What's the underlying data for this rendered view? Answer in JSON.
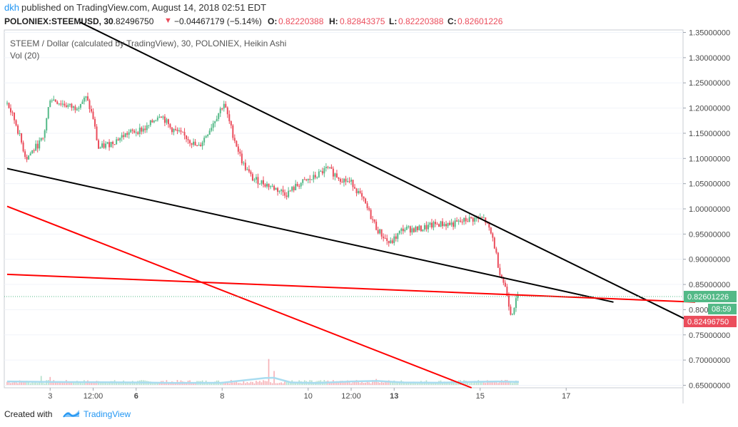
{
  "header": {
    "author": "dkh",
    "published_text": "published on TradingView.com, August 14, 2018 02:51 EDT"
  },
  "ohlc": {
    "symbol": "POLONIEX:STEEMUSD, 30",
    "last": "0.82496750",
    "change": "−0.04467179 (−5.14%)",
    "o_label": "O:",
    "o": "0.82220388",
    "h_label": "H:",
    "h": "0.82843375",
    "l_label": "L:",
    "l": "0.82220388",
    "c_label": "C:",
    "c": "0.82601226"
  },
  "legend": {
    "title": "STEEM / Dollar (calculated by TradingView), 30, POLONIEX, Heikin Ashi",
    "volume": "Vol (20)"
  },
  "colors": {
    "up": "#53b987",
    "down": "#eb4d5c",
    "trend_black": "#000000",
    "trend_red": "#ff0000",
    "vol_ma": "#a9dcf0",
    "price_tag_green": "#53b987",
    "price_tag_red": "#eb4d5c"
  },
  "chart_data": {
    "type": "candlestick",
    "style": "Heikin Ashi",
    "ylim": [
      0.645,
      1.355
    ],
    "y_ticks": [
      "1.35000000",
      "1.30000000",
      "1.25000000",
      "1.20000000",
      "1.15000000",
      "1.10000000",
      "1.05000000",
      "1.00000000",
      "0.95000000",
      "0.90000000",
      "0.85000000",
      "0.80000000",
      "0.75000000",
      "0.70000000",
      "0.65000000"
    ],
    "x_ticks": [
      {
        "label": "3",
        "bold": false,
        "t": 0.5
      },
      {
        "label": "12:00",
        "bold": false,
        "t": 1.0
      },
      {
        "label": "6",
        "bold": true,
        "t": 1.5
      },
      {
        "label": "8",
        "bold": false,
        "t": 2.5
      },
      {
        "label": "10",
        "bold": false,
        "t": 3.5
      },
      {
        "label": "12:00",
        "bold": false,
        "t": 4.0
      },
      {
        "label": "13",
        "bold": true,
        "t": 4.5
      },
      {
        "label": "15",
        "bold": false,
        "t": 5.5
      },
      {
        "label": "17",
        "bold": false,
        "t": 6.5
      }
    ],
    "price_path": [
      [
        0.0,
        1.21
      ],
      [
        0.1,
        1.17
      ],
      [
        0.22,
        1.1
      ],
      [
        0.32,
        1.12
      ],
      [
        0.42,
        1.14
      ],
      [
        0.5,
        1.22
      ],
      [
        0.62,
        1.21
      ],
      [
        0.78,
        1.2
      ],
      [
        0.92,
        1.22
      ],
      [
        1.0,
        1.18
      ],
      [
        1.06,
        1.12
      ],
      [
        1.2,
        1.13
      ],
      [
        1.4,
        1.15
      ],
      [
        1.62,
        1.16
      ],
      [
        1.78,
        1.19
      ],
      [
        1.9,
        1.16
      ],
      [
        2.1,
        1.14
      ],
      [
        2.22,
        1.12
      ],
      [
        2.36,
        1.16
      ],
      [
        2.52,
        1.21
      ],
      [
        2.62,
        1.15
      ],
      [
        2.74,
        1.09
      ],
      [
        2.85,
        1.06
      ],
      [
        3.0,
        1.05
      ],
      [
        3.12,
        1.04
      ],
      [
        3.25,
        1.03
      ],
      [
        3.4,
        1.05
      ],
      [
        3.55,
        1.06
      ],
      [
        3.72,
        1.08
      ],
      [
        3.88,
        1.06
      ],
      [
        4.02,
        1.05
      ],
      [
        4.16,
        1.01
      ],
      [
        4.3,
        0.96
      ],
      [
        4.45,
        0.93
      ],
      [
        4.6,
        0.96
      ],
      [
        4.8,
        0.96
      ],
      [
        5.0,
        0.97
      ],
      [
        5.2,
        0.97
      ],
      [
        5.38,
        0.98
      ],
      [
        5.55,
        0.98
      ],
      [
        5.65,
        0.94
      ],
      [
        5.72,
        0.88
      ],
      [
        5.8,
        0.84
      ],
      [
        5.86,
        0.79
      ],
      [
        5.9,
        0.81
      ],
      [
        5.94,
        0.826
      ]
    ],
    "volume_ma_path": [
      [
        0.0,
        0.35
      ],
      [
        0.5,
        0.3
      ],
      [
        1.0,
        0.28
      ],
      [
        1.5,
        0.25
      ],
      [
        2.0,
        0.2
      ],
      [
        2.5,
        0.22
      ],
      [
        3.0,
        0.7
      ],
      [
        3.1,
        0.72
      ],
      [
        3.3,
        0.25
      ],
      [
        3.6,
        0.2
      ],
      [
        4.0,
        0.35
      ],
      [
        4.3,
        0.4
      ],
      [
        4.6,
        0.25
      ],
      [
        5.0,
        0.22
      ],
      [
        5.4,
        0.3
      ],
      [
        5.7,
        0.35
      ],
      [
        5.95,
        0.3
      ]
    ],
    "volume_spikes": [
      {
        "t": 0.4,
        "v": 0.9
      },
      {
        "t": 0.5,
        "v": 0.8
      },
      {
        "t": 2.6,
        "v": 0.5
      },
      {
        "t": 3.05,
        "v": 2.6
      },
      {
        "t": 3.1,
        "v": 1.4
      },
      {
        "t": 4.3,
        "v": 0.6
      },
      {
        "t": 5.8,
        "v": 0.5
      }
    ],
    "trend_lines": [
      {
        "color": "black",
        "p1": [
          0.85,
          1.37
        ],
        "p2": [
          7.9,
          0.78
        ]
      },
      {
        "color": "black",
        "p1": [
          0.0,
          1.08
        ],
        "p2": [
          7.05,
          0.815
        ]
      },
      {
        "color": "red",
        "p1": [
          0.0,
          0.87
        ],
        "p2": [
          8.0,
          0.815
        ]
      },
      {
        "color": "red",
        "p1": [
          0.0,
          1.005
        ],
        "p2": [
          5.4,
          0.645
        ]
      }
    ],
    "last_price_tag": "0.82601226",
    "countdown_tag": "08:59",
    "close_price_tag": "0.82496750",
    "last_price": 0.82601226
  },
  "footer": {
    "created_with": "Created with",
    "brand": "TradingView"
  }
}
